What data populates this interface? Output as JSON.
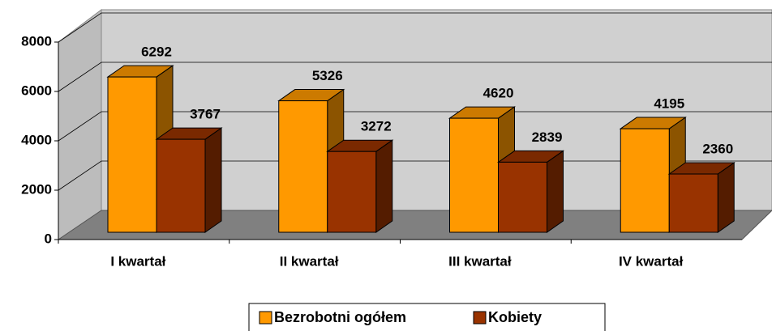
{
  "chart_data": {
    "type": "bar3d",
    "categories": [
      "I kwartał",
      "II kwartał",
      "III kwartał",
      "IV kwartał"
    ],
    "series": [
      {
        "name": "Bezrobotni ogółem",
        "color": "#ff9900",
        "values": [
          6292,
          5326,
          4620,
          4195
        ]
      },
      {
        "name": "Kobiety",
        "color": "#993300",
        "values": [
          3767,
          3272,
          2839,
          2360
        ]
      }
    ],
    "ylim": [
      0,
      8000
    ],
    "yticks": [
      0,
      2000,
      4000,
      6000,
      8000
    ],
    "grid": true,
    "legend": "bottom"
  }
}
